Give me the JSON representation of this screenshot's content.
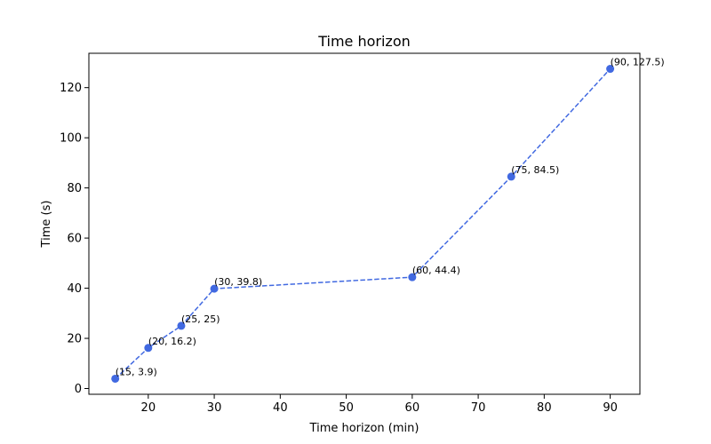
{
  "chart_data": {
    "type": "line",
    "title": "Time horizon",
    "xlabel": "Time horizon (min)",
    "ylabel": "Time (s)",
    "xlim": [
      11,
      94.5
    ],
    "ylim": [
      -2.3,
      133.7
    ],
    "xticks": [
      20,
      30,
      40,
      50,
      60,
      70,
      80,
      90
    ],
    "yticks": [
      0,
      20,
      40,
      60,
      80,
      100,
      120
    ],
    "grid": false,
    "line_style": "dashed",
    "marker": "circle",
    "color": "#4169e1",
    "series": [
      {
        "x": [
          15,
          20,
          25,
          30,
          60,
          75,
          90
        ],
        "y": [
          3.9,
          16.2,
          25,
          39.8,
          44.4,
          84.5,
          127.5
        ],
        "labels": [
          "(15, 3.9)",
          "(20, 16.2)",
          "(25, 25)",
          "(30, 39.8)",
          "(60, 44.4)",
          "(75, 84.5)",
          "(90, 127.5)"
        ]
      }
    ]
  }
}
